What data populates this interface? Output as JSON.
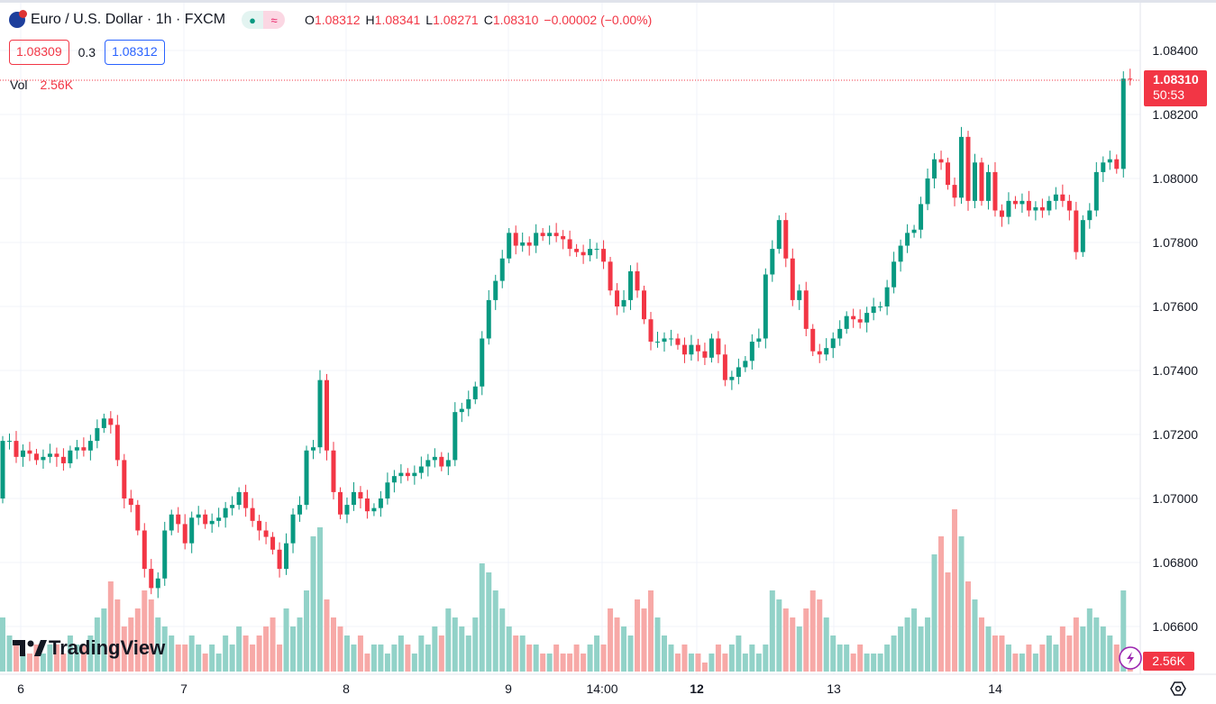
{
  "header": {
    "symbol": "Euro / U.S. Dollar · 1h · FXCM",
    "o_label": "O",
    "o": "1.08312",
    "h_label": "H",
    "h": "1.08341",
    "l_label": "L",
    "l": "1.08271",
    "c_label": "C",
    "c": "1.08310",
    "change": "−0.00002 (−0.00%)",
    "bid": "1.08309",
    "spread": "0.3",
    "ask": "1.08312",
    "vol_label": "Vol",
    "vol_value": "2.56K"
  },
  "price_axis": {
    "current_price": "1.08310",
    "countdown": "50:53",
    "volume_badge": "2.56K"
  },
  "brand": "TradingView",
  "colors": {
    "up": "#089981",
    "down": "#f23645",
    "up_vol": "#92d2c8",
    "down_vol": "#f7a9a7"
  },
  "chart_data": {
    "type": "candlestick",
    "title": "Euro / U.S. Dollar · 1h · FXCM",
    "ylim": [
      1.0648,
      1.0853
    ],
    "yticks": [
      "1.08400",
      "1.08200",
      "1.08000",
      "1.07800",
      "1.07600",
      "1.07400",
      "1.07200",
      "1.07000",
      "1.06800",
      "1.06600"
    ],
    "xticks": [
      {
        "label": "6",
        "bold": false
      },
      {
        "label": "7",
        "bold": false
      },
      {
        "label": "8",
        "bold": false
      },
      {
        "label": "9",
        "bold": false
      },
      {
        "label": "14:00",
        "bold": false
      },
      {
        "label": "12",
        "bold": true
      },
      {
        "label": "13",
        "bold": false
      },
      {
        "label": "14",
        "bold": false
      }
    ],
    "first_open": 1.07,
    "close": [
      1.0718,
      1.0718,
      1.0713,
      1.0715,
      1.0714,
      1.0712,
      1.0713,
      1.0714,
      1.0713,
      1.0711,
      1.0715,
      1.0716,
      1.0715,
      1.0718,
      1.0722,
      1.0725,
      1.0723,
      1.0712,
      1.07,
      1.0698,
      1.069,
      1.0678,
      1.0672,
      1.0675,
      1.069,
      1.0695,
      1.0692,
      1.0686,
      1.0694,
      1.0695,
      1.0692,
      1.0693,
      1.0694,
      1.0697,
      1.0698,
      1.0702,
      1.0697,
      1.0693,
      1.069,
      1.0688,
      1.0684,
      1.0678,
      1.0686,
      1.0695,
      1.0698,
      1.0715,
      1.0716,
      1.0737,
      1.0715,
      1.0702,
      1.0695,
      1.0698,
      1.0702,
      1.07,
      1.0696,
      1.0697,
      1.07,
      1.0705,
      1.0707,
      1.0708,
      1.0707,
      1.0708,
      1.071,
      1.0712,
      1.0713,
      1.071,
      1.0712,
      1.0727,
      1.0728,
      1.0731,
      1.0735,
      1.075,
      1.0762,
      1.0768,
      1.0775,
      1.0783,
      1.0779,
      1.078,
      1.0779,
      1.0783,
      1.0782,
      1.0783,
      1.0782,
      1.0781,
      1.0778,
      1.0777,
      1.0776,
      1.0778,
      1.0778,
      1.0774,
      1.0765,
      1.076,
      1.0762,
      1.0771,
      1.0765,
      1.0756,
      1.0749,
      1.0749,
      1.075,
      1.075,
      1.0748,
      1.0745,
      1.0748,
      1.0746,
      1.0744,
      1.075,
      1.0745,
      1.0737,
      1.0738,
      1.0741,
      1.0743,
      1.0749,
      1.075,
      1.077,
      1.0778,
      1.0787,
      1.0775,
      1.0762,
      1.0765,
      1.0753,
      1.0746,
      1.0745,
      1.0747,
      1.075,
      1.0753,
      1.0757,
      1.0756,
      1.0755,
      1.0758,
      1.076,
      1.076,
      1.0766,
      1.0774,
      1.0779,
      1.0783,
      1.0784,
      1.0792,
      1.08,
      1.0806,
      1.0805,
      1.0798,
      1.0794,
      1.0813,
      1.0793,
      1.0805,
      1.0793,
      1.0802,
      1.079,
      1.0788,
      1.0793,
      1.0792,
      1.0793,
      1.079,
      1.0791,
      1.079,
      1.0793,
      1.0795,
      1.0793,
      1.079,
      1.0777,
      1.0787,
      1.079,
      1.0802,
      1.0805,
      1.0806,
      1.0803,
      1.08312,
      1.0831
    ],
    "volume_k": [
      6,
      4,
      3,
      2,
      2,
      3,
      2,
      3,
      3,
      2,
      4,
      3,
      3,
      4,
      6,
      7,
      10,
      8,
      5,
      6,
      7,
      9,
      8,
      6,
      5,
      4,
      3,
      3,
      4,
      3,
      2,
      3,
      2,
      4,
      3,
      5,
      4,
      3,
      4,
      5,
      6,
      3,
      7,
      5,
      6,
      9,
      15,
      16,
      8,
      6,
      5,
      4,
      3,
      4,
      2,
      3,
      3,
      2,
      3,
      4,
      3,
      2,
      4,
      3,
      5,
      4,
      7,
      6,
      5,
      4,
      6,
      12,
      11,
      9,
      7,
      5,
      4,
      4,
      3,
      3,
      2,
      2,
      3,
      2,
      2,
      3,
      2,
      3,
      4,
      3,
      7,
      6,
      5,
      4,
      8,
      7,
      9,
      6,
      4,
      3,
      2,
      3,
      2,
      2,
      1,
      2,
      3,
      2,
      3,
      4,
      2,
      3,
      2,
      3,
      9,
      8,
      7,
      6,
      5,
      7,
      9,
      8,
      6,
      4,
      3,
      3,
      2,
      3,
      2,
      2,
      2,
      3,
      4,
      5,
      6,
      7,
      5,
      6,
      13,
      15,
      11,
      18,
      15,
      10,
      8,
      6,
      5,
      4,
      4,
      3,
      2,
      2,
      3,
      2,
      3,
      4,
      3,
      5,
      4,
      6,
      5,
      7,
      6,
      5,
      4,
      3,
      9,
      2.56
    ]
  }
}
